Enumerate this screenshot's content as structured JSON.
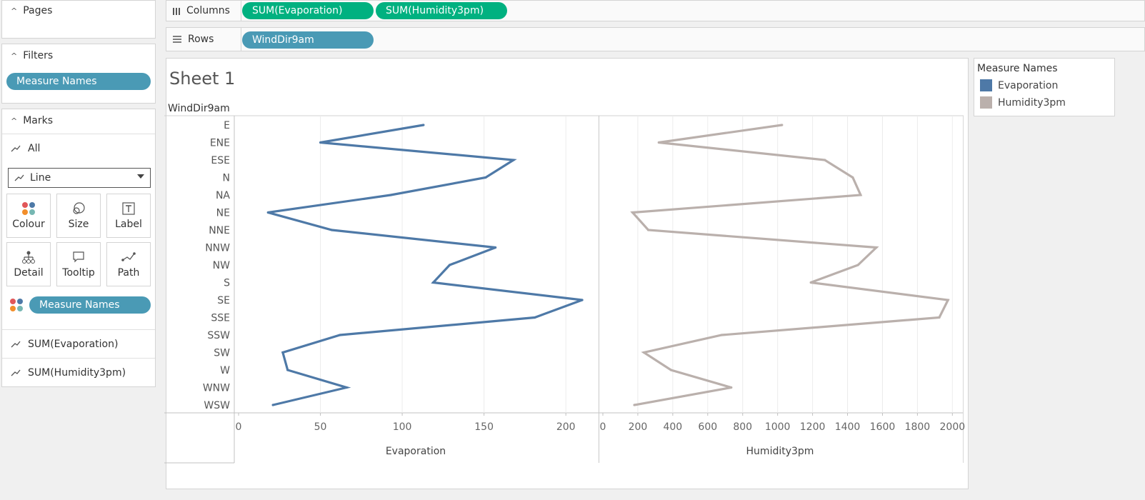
{
  "left": {
    "pages_title": "Pages",
    "filters_title": "Filters",
    "filter_pill": "Measure Names",
    "marks_title": "Marks",
    "marks_all": "All",
    "mark_type": "Line",
    "buttons": {
      "colour": "Colour",
      "size": "Size",
      "label": "Label",
      "detail": "Detail",
      "tooltip": "Tooltip",
      "path": "Path"
    },
    "color_pill": "Measure Names",
    "measure1": "SUM(Evaporation)",
    "measure2": "SUM(Humidity3pm)"
  },
  "shelves": {
    "columns_label": "Columns",
    "columns_pills": [
      "SUM(Evaporation)",
      "SUM(Humidity3pm)"
    ],
    "rows_label": "Rows",
    "rows_pill": "WindDir9am"
  },
  "sheet": {
    "title": "Sheet 1",
    "row_header": "WindDir9am"
  },
  "legend": {
    "title": "Measure Names",
    "items": [
      {
        "label": "Evaporation",
        "color": "#4e79a7"
      },
      {
        "label": "Humidity3pm",
        "color": "#bab0ac"
      }
    ]
  },
  "chart_data": {
    "type": "line",
    "categories": [
      "E",
      "ENE",
      "ESE",
      "N",
      "NA",
      "NE",
      "NNE",
      "NNW",
      "NW",
      "S",
      "SE",
      "SSE",
      "SSW",
      "SW",
      "W",
      "WNW",
      "WSW"
    ],
    "series": [
      {
        "name": "Evaporation",
        "color": "#4e79a7",
        "values": [
          113,
          50,
          168,
          151,
          93,
          18,
          57,
          157,
          129,
          119,
          210,
          181,
          62,
          27,
          30,
          66,
          21
        ],
        "xlabel": "Evaporation",
        "xlim": [
          0,
          220
        ],
        "ticks": [
          0,
          50,
          100,
          150,
          200
        ]
      },
      {
        "name": "Humidity3pm",
        "color": "#bab0ac",
        "values": [
          1025,
          320,
          1270,
          1430,
          1475,
          170,
          260,
          1565,
          1460,
          1190,
          1975,
          1925,
          680,
          235,
          390,
          735,
          180
        ],
        "xlabel": "Humidity3pm",
        "xlim": [
          0,
          2060
        ],
        "ticks": [
          0,
          200,
          400,
          600,
          800,
          1000,
          1200,
          1400,
          1600,
          1800,
          2000
        ]
      }
    ]
  }
}
